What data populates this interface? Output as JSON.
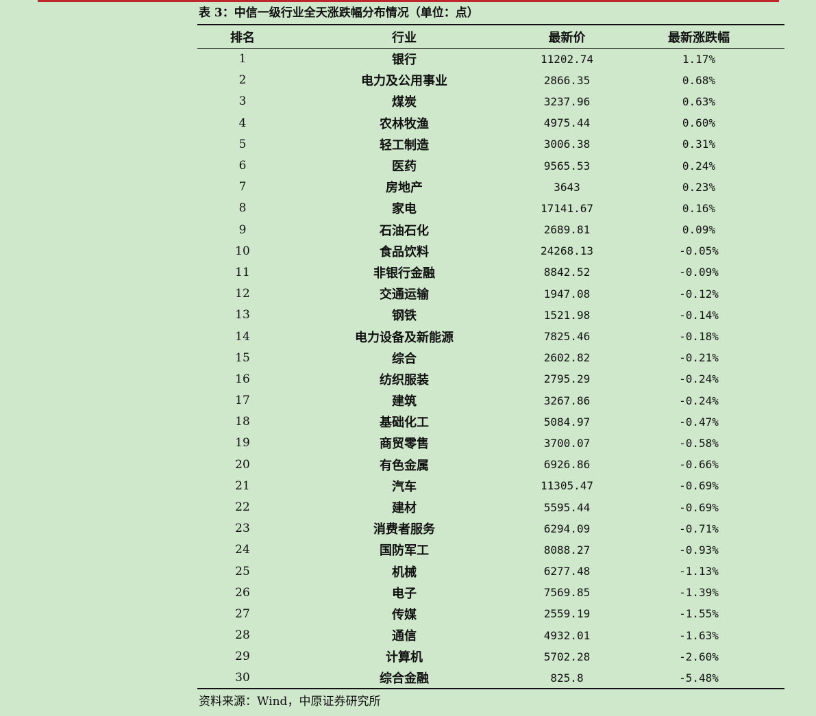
{
  "caption": "表 3：中信一级行业全天涨跌幅分布情况（单位：点）",
  "headers": [
    "排名",
    "行业",
    "最新价",
    "最新涨跌幅"
  ],
  "rows": [
    [
      "1",
      "银行",
      "11202.74",
      "1.17%"
    ],
    [
      "2",
      "电力及公用事业",
      "2866.35",
      "0.68%"
    ],
    [
      "3",
      "煤炭",
      "3237.96",
      "0.63%"
    ],
    [
      "4",
      "农林牧渔",
      "4975.44",
      "0.60%"
    ],
    [
      "5",
      "轻工制造",
      "3006.38",
      "0.31%"
    ],
    [
      "6",
      "医药",
      "9565.53",
      "0.24%"
    ],
    [
      "7",
      "房地产",
      "3643",
      "0.23%"
    ],
    [
      "8",
      "家电",
      "17141.67",
      "0.16%"
    ],
    [
      "9",
      "石油石化",
      "2689.81",
      "0.09%"
    ],
    [
      "10",
      "食品饮料",
      "24268.13",
      "-0.05%"
    ],
    [
      "11",
      "非银行金融",
      "8842.52",
      "-0.09%"
    ],
    [
      "12",
      "交通运输",
      "1947.08",
      "-0.12%"
    ],
    [
      "13",
      "钢铁",
      "1521.98",
      "-0.14%"
    ],
    [
      "14",
      "电力设备及新能源",
      "7825.46",
      "-0.18%"
    ],
    [
      "15",
      "综合",
      "2602.82",
      "-0.21%"
    ],
    [
      "16",
      "纺织服装",
      "2795.29",
      "-0.24%"
    ],
    [
      "17",
      "建筑",
      "3267.86",
      "-0.24%"
    ],
    [
      "18",
      "基础化工",
      "5084.97",
      "-0.47%"
    ],
    [
      "19",
      "商贸零售",
      "3700.07",
      "-0.58%"
    ],
    [
      "20",
      "有色金属",
      "6926.86",
      "-0.66%"
    ],
    [
      "21",
      "汽车",
      "11305.47",
      "-0.69%"
    ],
    [
      "22",
      "建材",
      "5595.44",
      "-0.69%"
    ],
    [
      "23",
      "消费者服务",
      "6294.09",
      "-0.71%"
    ],
    [
      "24",
      "国防军工",
      "8088.27",
      "-0.93%"
    ],
    [
      "25",
      "机械",
      "6277.48",
      "-1.13%"
    ],
    [
      "26",
      "电子",
      "7569.85",
      "-1.39%"
    ],
    [
      "27",
      "传媒",
      "2559.19",
      "-1.55%"
    ],
    [
      "28",
      "通信",
      "4932.01",
      "-1.63%"
    ],
    [
      "29",
      "计算机",
      "5702.28",
      "-2.60%"
    ],
    [
      "30",
      "综合金融",
      "825.8",
      "-5.48%"
    ]
  ],
  "source": "资料来源：Wind，中原证券研究所",
  "colors": {
    "background": "#cfe8cb",
    "top_rule": "#c0272d",
    "text": "#111111"
  }
}
